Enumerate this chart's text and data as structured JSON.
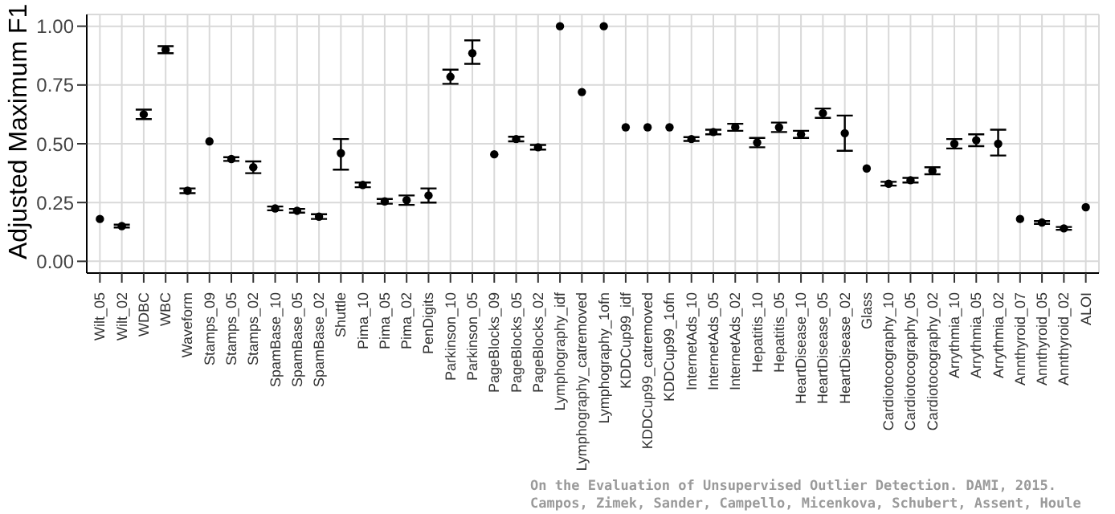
{
  "chart_data": {
    "type": "scatter",
    "ylabel": "Adjusted Maximum F1",
    "categories": [
      "Wilt_05",
      "Wilt_02",
      "WDBC",
      "WBC",
      "Waveform",
      "Stamps_09",
      "Stamps_05",
      "Stamps_02",
      "SpamBase_10",
      "SpamBase_05",
      "SpamBase_02",
      "Shuttle",
      "Pima_10",
      "Pima_05",
      "Pima_02",
      "PenDigits",
      "Parkinson_10",
      "Parkinson_05",
      "PageBlocks_09",
      "PageBlocks_05",
      "PageBlocks_02",
      "Lymphography_idf",
      "Lymphography_catremoved",
      "Lymphography_1ofn",
      "KDDCup99_idf",
      "KDDCup99_catremoved",
      "KDDCup99_1ofn",
      "InternetAds_10",
      "InternetAds_05",
      "InternetAds_02",
      "Hepatitis_10",
      "Hepatitis_05",
      "HeartDisease_10",
      "HeartDisease_05",
      "HeartDisease_02",
      "Glass",
      "Cardiotocography_10",
      "Cardiotocography_05",
      "Cardiotocography_02",
      "Arrythmia_10",
      "Arrythmia_05",
      "Arrythmia_02",
      "Annthyroid_07",
      "Annthyroid_05",
      "Annthyroid_02",
      "ALOI"
    ],
    "values": [
      0.18,
      0.15,
      0.625,
      0.9,
      0.3,
      0.51,
      0.435,
      0.4,
      0.225,
      0.215,
      0.19,
      0.46,
      0.325,
      0.255,
      0.26,
      0.28,
      0.785,
      0.885,
      0.455,
      0.52,
      0.485,
      1.0,
      0.72,
      1.0,
      0.57,
      0.57,
      0.57,
      0.52,
      0.55,
      0.57,
      0.505,
      0.57,
      0.54,
      0.63,
      0.545,
      0.395,
      0.33,
      0.345,
      0.385,
      0.5,
      0.515,
      0.5,
      0.18,
      0.165,
      0.14,
      0.23
    ],
    "errors": [
      null,
      0.006,
      0.02,
      0.015,
      0.01,
      null,
      0.008,
      0.025,
      0.008,
      0.008,
      0.01,
      [
        0.39,
        0.52
      ],
      0.01,
      0.01,
      0.02,
      [
        0.25,
        0.31
      ],
      0.03,
      [
        0.84,
        0.94
      ],
      null,
      0.01,
      0.01,
      null,
      null,
      null,
      null,
      null,
      null,
      0.008,
      0.01,
      0.015,
      0.02,
      0.02,
      0.015,
      0.02,
      [
        0.47,
        0.62
      ],
      null,
      0.008,
      0.01,
      0.015,
      0.02,
      0.025,
      [
        0.45,
        0.56
      ],
      null,
      0.006,
      0.006,
      null
    ],
    "color": "#000000",
    "marker": "circle",
    "ylim": [
      -0.05,
      1.05
    ],
    "yticks": [
      {
        "value": 0,
        "label": "0.00"
      },
      {
        "value": 0.25,
        "label": "0.25"
      },
      {
        "value": 0.5,
        "label": "0.50"
      },
      {
        "value": 0.75,
        "label": "0.75"
      },
      {
        "value": 1,
        "label": "1.00"
      }
    ],
    "grid": true,
    "annotations": [
      "On the Evaluation of Unsupervised Outlier Detection. DAMI, 2015.",
      "Campos, Zimek, Sander, Campello, Micenkova, Schubert, Assent, Houle"
    ]
  }
}
